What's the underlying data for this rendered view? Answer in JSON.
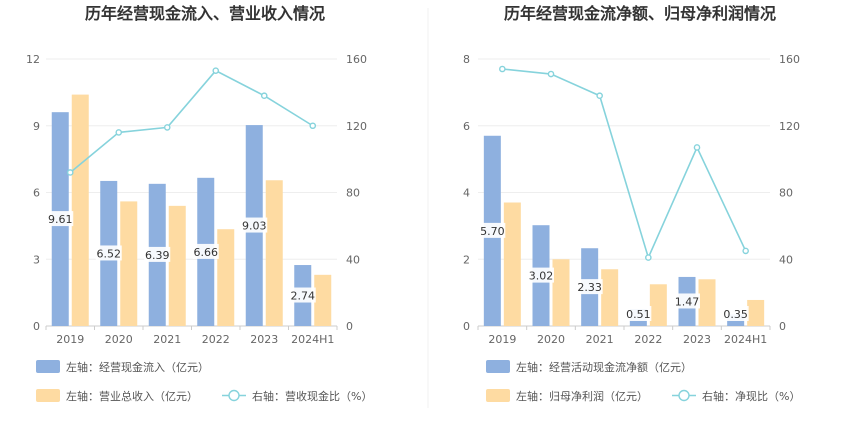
{
  "chart_data": [
    {
      "type": "bar+line",
      "title": "历年经营现金流入、营业收入情况",
      "categories": [
        "2019",
        "2020",
        "2021",
        "2022",
        "2023",
        "2024H1"
      ],
      "left_axis": {
        "ylim": [
          0,
          12
        ],
        "ticks": [
          "0",
          "3",
          "6",
          "9",
          "12"
        ]
      },
      "right_axis": {
        "ylim": [
          0,
          160
        ],
        "ticks": [
          "0",
          "40",
          "80",
          "120",
          "160"
        ]
      },
      "series": [
        {
          "name": "左轴：经营现金流入（亿元）",
          "kind": "bar",
          "axis": "left",
          "color": "#8eb0df",
          "values": [
            9.61,
            6.52,
            6.39,
            6.66,
            9.03,
            2.74
          ],
          "labels": [
            "9.61",
            "6.52",
            "6.39",
            "6.66",
            "9.03",
            "2.74"
          ]
        },
        {
          "name": "左轴：营业总收入（亿元）",
          "kind": "bar",
          "axis": "left",
          "color": "#fedba2",
          "values": [
            10.4,
            5.6,
            5.4,
            4.35,
            6.55,
            2.3
          ]
        },
        {
          "name": "右轴：营收现金比（%）",
          "kind": "line",
          "axis": "right",
          "color": "#86d3dc",
          "values": [
            92,
            116,
            119,
            153,
            138,
            120
          ]
        }
      ],
      "legend": [
        "左轴：经营现金流入（亿元）",
        "左轴：营业总收入（亿元）",
        "右轴：营收现金比（%）"
      ]
    },
    {
      "type": "bar+line",
      "title": "历年经营现金流净额、归母净利润情况",
      "categories": [
        "2019",
        "2020",
        "2021",
        "2022",
        "2023",
        "2024H1"
      ],
      "left_axis": {
        "ylim": [
          0,
          8
        ],
        "ticks": [
          "0",
          "2",
          "4",
          "6",
          "8"
        ]
      },
      "right_axis": {
        "ylim": [
          0,
          160
        ],
        "ticks": [
          "0",
          "40",
          "80",
          "120",
          "160"
        ]
      },
      "series": [
        {
          "name": "左轴：经营活动现金流净额（亿元）",
          "kind": "bar",
          "axis": "left",
          "color": "#8eb0df",
          "values": [
            5.7,
            3.02,
            2.33,
            0.51,
            1.47,
            0.35
          ],
          "labels": [
            "5.70",
            "3.02",
            "2.33",
            "0.51",
            "1.47",
            "0.35"
          ]
        },
        {
          "name": "左轴：归母净利润（亿元）",
          "kind": "bar",
          "axis": "left",
          "color": "#fedba2",
          "values": [
            3.7,
            2.0,
            1.7,
            1.25,
            1.4,
            0.78
          ]
        },
        {
          "name": "右轴：净现比（%）",
          "kind": "line",
          "axis": "right",
          "color": "#86d3dc",
          "values": [
            154,
            151,
            138,
            41,
            107,
            45
          ]
        }
      ],
      "legend": [
        "左轴：经营活动现金流净额（亿元）",
        "左轴：归母净利润（亿元）",
        "右轴：净现比（%）"
      ]
    }
  ]
}
